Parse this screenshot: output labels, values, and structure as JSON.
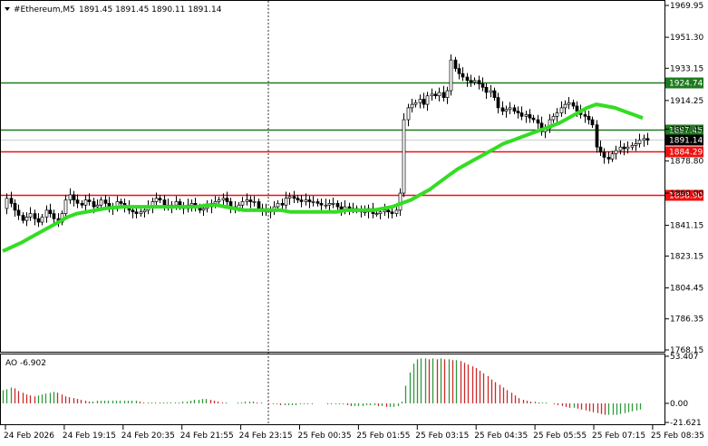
{
  "header": {
    "symbol": "#Ethereum,M5",
    "values": "1891.45 1891.45 1890.11 1891.14",
    "arrow_icon": "triangle-down-icon"
  },
  "indicator": {
    "label": "AO -6.902"
  },
  "colors": {
    "background": "#ffffff",
    "candle": "#000000",
    "ma_line": "#33dd22",
    "resistance": "#1f7a1f",
    "support": "#ee1111",
    "ao_up": "#2f9a3a",
    "ao_down": "#cc2a2a",
    "grid": "#000000"
  },
  "chart_data": [
    {
      "type": "candlestick",
      "title": "#Ethereum,M5",
      "ylim": [
        1768.15,
        1969.95
      ],
      "y_ticks": [
        "1969.95",
        "1951.30",
        "1933.15",
        "1914.25",
        "1897.45",
        "1878.80",
        "1860.00",
        "1841.15",
        "1823.15",
        "1804.45",
        "1786.35",
        "1768.15"
      ],
      "x_ticks": [
        "24 Feb 2026",
        "24 Feb 19:15",
        "24 Feb 20:35",
        "24 Feb 21:55",
        "24 Feb 23:15",
        "25 Feb 00:35",
        "25 Feb 01:55",
        "25 Feb 03:15",
        "25 Feb 04:35",
        "25 Feb 05:55",
        "25 Feb 07:15",
        "25 Feb 08:35"
      ],
      "levels": [
        {
          "label": "1924.74",
          "value": 1924.74,
          "kind": "resistance"
        },
        {
          "label": "1897.45",
          "value": 1897.45,
          "kind": "resistance"
        },
        {
          "label": "1884.29",
          "value": 1884.29,
          "kind": "support"
        },
        {
          "label": "1858.90",
          "value": 1858.9,
          "kind": "support"
        }
      ],
      "current_price": {
        "label": "1891.14",
        "value": 1891.14
      },
      "close_series": [
        1851,
        1857,
        1854,
        1850,
        1847,
        1844,
        1846,
        1848,
        1845,
        1843,
        1846,
        1850,
        1848,
        1845,
        1843,
        1848,
        1856,
        1859,
        1856,
        1854,
        1853,
        1856,
        1855,
        1852,
        1853,
        1856,
        1854,
        1851,
        1852,
        1855,
        1854,
        1852,
        1850,
        1849,
        1848,
        1849,
        1850,
        1852,
        1855,
        1857,
        1856,
        1853,
        1852,
        1853,
        1855,
        1852,
        1851,
        1853,
        1854,
        1852,
        1850,
        1851,
        1852,
        1854,
        1855,
        1856,
        1857,
        1855,
        1852,
        1851,
        1853,
        1855,
        1856,
        1855,
        1855,
        1851,
        1850,
        1849,
        1850,
        1852,
        1854,
        1853,
        1857,
        1858,
        1857,
        1856,
        1855,
        1856,
        1855,
        1855,
        1854,
        1853,
        1853,
        1854,
        1854,
        1852,
        1850,
        1852,
        1851,
        1851,
        1850,
        1849,
        1849,
        1851,
        1848,
        1848,
        1849,
        1850,
        1849,
        1848,
        1850,
        1860,
        1903,
        1910,
        1912,
        1913,
        1915,
        1912,
        1917,
        1918,
        1917,
        1919,
        1916,
        1920,
        1938,
        1933,
        1930,
        1928,
        1926,
        1925,
        1926,
        1924,
        1922,
        1919,
        1920,
        1916,
        1910,
        1908,
        1909,
        1910,
        1908,
        1907,
        1905,
        1906,
        1904,
        1903,
        1901,
        1896,
        1898,
        1903,
        1905,
        1907,
        1910,
        1912,
        1913,
        1911,
        1908,
        1906,
        1905,
        1903,
        1900,
        1887,
        1884,
        1881,
        1880,
        1883,
        1885,
        1887,
        1886,
        1887,
        1888,
        1889,
        1891,
        1892,
        1891
      ],
      "ma_series": [
        1826,
        1828.5,
        1831,
        1834,
        1837,
        1840,
        1843,
        1846,
        1848,
        1849,
        1850,
        1851,
        1851.5,
        1852,
        1852,
        1852,
        1852,
        1852,
        1852,
        1852,
        1852,
        1852,
        1853,
        1853,
        1852,
        1851,
        1850,
        1850,
        1850,
        1850,
        1850,
        1849,
        1849,
        1849,
        1849,
        1849,
        1849,
        1850,
        1850,
        1850,
        1850,
        1851,
        1852,
        1854,
        1856,
        1859,
        1862,
        1866,
        1870,
        1874,
        1877,
        1880,
        1883,
        1886,
        1889,
        1891,
        1893,
        1895,
        1897,
        1899,
        1901,
        1904,
        1907,
        1910,
        1912,
        1911,
        1910,
        1908,
        1906,
        1904
      ],
      "ao": {
        "label": "AO",
        "value": -6.902,
        "ylim": [
          -21.621,
          53.407
        ],
        "ticks": [
          "53.407",
          "0.00",
          "-21.621"
        ],
        "values": [
          15,
          16,
          18,
          17,
          14,
          12,
          10,
          9,
          8,
          9,
          10,
          11,
          12,
          13,
          12,
          10,
          8,
          7,
          6,
          5,
          4,
          3,
          2,
          2,
          3,
          3,
          3,
          3,
          3,
          3,
          3,
          3,
          3,
          3,
          3,
          2,
          1,
          1,
          1,
          1,
          1,
          1,
          1,
          1,
          1,
          1,
          2,
          2,
          3,
          4,
          4,
          5,
          5,
          4,
          3,
          2,
          1,
          1,
          0,
          0,
          1,
          1,
          2,
          2,
          2,
          1,
          1,
          0,
          -1,
          -1,
          -1,
          -2,
          -2,
          -2,
          -2,
          -2,
          -1,
          -1,
          -1,
          -1,
          0,
          0,
          0,
          -1,
          -1,
          -1,
          -1,
          -1,
          -2,
          -3,
          -3,
          -3,
          -3,
          -2,
          -2,
          -2,
          -3,
          -3,
          -4,
          -4,
          -4,
          -3,
          2,
          20,
          35,
          45,
          50,
          51,
          51,
          50,
          51,
          50,
          51,
          50,
          50,
          49,
          49,
          48,
          46,
          44,
          42,
          40,
          37,
          34,
          31,
          27,
          24,
          21,
          18,
          15,
          12,
          9,
          6,
          4,
          3,
          2,
          2,
          1,
          1,
          1,
          0,
          -1,
          -2,
          -3,
          -4,
          -5,
          -5,
          -6,
          -7,
          -8,
          -9,
          -10,
          -11,
          -12,
          -13,
          -13,
          -13,
          -13,
          -12,
          -11,
          -10,
          -9,
          -8,
          -7
        ]
      }
    }
  ]
}
